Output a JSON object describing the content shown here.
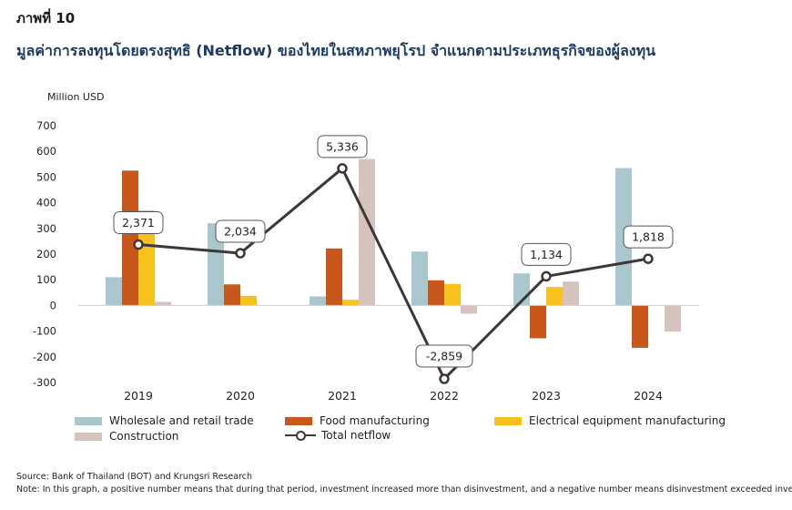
{
  "figure_number": "ภาพที่ 10",
  "title": "มูลค่าการลงทุนโดยตรงสุทธิ (Netflow) ของไทยในสหภาพยุโรป จำแนกตามประเภทธุรกิจของผู้ลงทุน",
  "unit_label": "Million USD",
  "source": "Source: Bank of Thailand (BOT) and Krungsri Research",
  "note": "Note: In this graph, a positive number means that during that period, investment increased more than disinvestment, and a negative number means disinvestment exceeded investment.",
  "colors": {
    "wholesale": "#a9c7cc",
    "food": "#c8571b",
    "electrical": "#f8c21c",
    "construction": "#d6c3bf",
    "netflow": "#3f3637"
  },
  "legend": {
    "wholesale": "Wholesale and retail trade",
    "food": "Food manufacturing",
    "electrical": "Electrical equipment manufacturing",
    "construction": "Construction",
    "netflow": "Total netflow"
  },
  "chart_data": {
    "type": "bar",
    "categories": [
      "2019",
      "2020",
      "2021",
      "2022",
      "2023",
      "2024"
    ],
    "ylim": [
      -300,
      700
    ],
    "yticks": [
      "700",
      "600",
      "500",
      "400",
      "300",
      "200",
      "100",
      "0",
      "-100",
      "-200",
      "-300"
    ],
    "series": [
      {
        "key": "wholesale",
        "name": "Wholesale and retail trade",
        "values": [
          110,
          320,
          35,
          210,
          125,
          535
        ]
      },
      {
        "key": "food",
        "name": "Food manufacturing",
        "values": [
          525,
          82,
          222,
          98,
          -128,
          -165
        ]
      },
      {
        "key": "electrical",
        "name": "Electrical equipment manufacturing",
        "values": [
          370,
          37,
          22,
          84,
          72,
          0
        ]
      },
      {
        "key": "construction",
        "name": "Construction",
        "values": [
          14,
          0,
          570,
          -32,
          93,
          -102
        ]
      }
    ],
    "line": {
      "name": "Total netflow",
      "values": [
        2371,
        2034,
        5336,
        -2859,
        1134,
        1818
      ],
      "labels": [
        "2,371",
        "2,034",
        "5,336",
        "-2,859",
        "1,134",
        "1,818"
      ]
    }
  }
}
